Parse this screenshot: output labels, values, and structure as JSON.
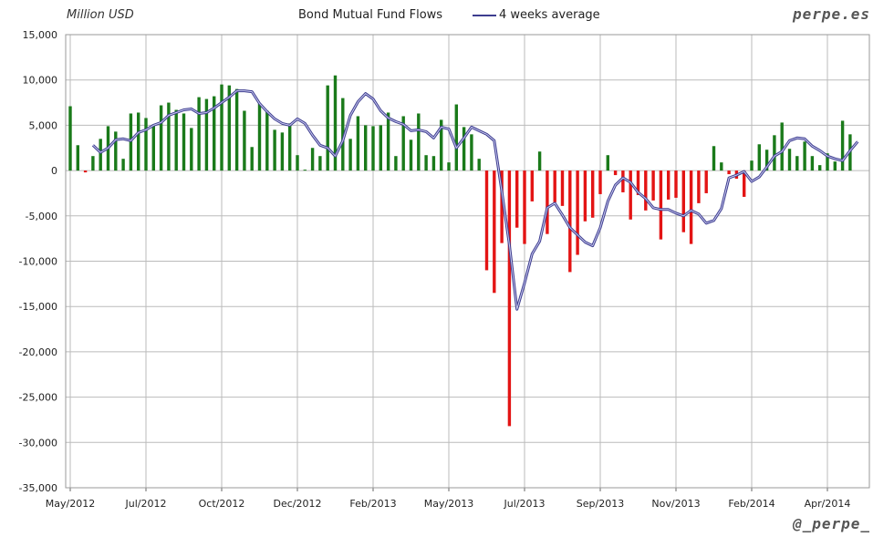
{
  "header": {
    "unit_label": "Million USD",
    "title": "Bond Mutual Fund Flows",
    "legend_label": "4 weeks average",
    "brand_top": "perpe.es",
    "brand_bottom": "@_perpe_"
  },
  "colors": {
    "positive": "#1a7a1a",
    "negative": "#e31414",
    "average": "#3d3d8f",
    "grid": "#bbbbbb"
  },
  "chart_data": {
    "type": "bar",
    "title": "Bond Mutual Fund Flows",
    "ylabel": "Million USD",
    "ylim": [
      -35000,
      15000
    ],
    "y_ticks": [
      15000,
      10000,
      5000,
      0,
      -5000,
      -10000,
      -15000,
      -20000,
      -25000,
      -30000,
      -35000
    ],
    "y_tick_labels": [
      "15,000",
      "10,000",
      "5,000",
      "0",
      "-5,000",
      "-10,000",
      "-15,000",
      "-20,000",
      "-25,000",
      "-30,000",
      "-35,000"
    ],
    "x_tick_labels": [
      "May/2012",
      "Jul/2012",
      "Oct/2012",
      "Dec/2012",
      "Feb/2013",
      "May/2013",
      "Jul/2013",
      "Sep/2013",
      "Nov/2013",
      "Feb/2014",
      "Apr/2014"
    ],
    "x_tick_weeks": [
      0,
      10,
      20,
      30,
      40,
      50,
      60,
      70,
      80,
      90,
      100
    ],
    "grid": true,
    "bar_series": {
      "name": "Bond Mutual Fund Flows",
      "values": [
        7100,
        2800,
        -200,
        1600,
        3500,
        4900,
        4300,
        1300,
        6300,
        6400,
        5800,
        5100,
        7200,
        7500,
        6700,
        6300,
        4700,
        8100,
        7900,
        8200,
        9500,
        9400,
        9000,
        6600,
        2600,
        7400,
        6600,
        4500,
        4200,
        5200,
        1700,
        100,
        2500,
        1600,
        9400,
        10500,
        8000,
        3500,
        6000,
        5000,
        4900,
        5000,
        6400,
        1600,
        6000,
        3400,
        6300,
        1700,
        1600,
        5600,
        900,
        7300,
        4800,
        4000,
        1300,
        -11000,
        -13500,
        -8000,
        -28200,
        -6300,
        -8100,
        -3400,
        2100,
        -7000,
        -3500,
        -3900,
        -11200,
        -9300,
        -5600,
        -5200,
        -2600,
        1700,
        -500,
        -2400,
        -5400,
        -2700,
        -4400,
        -3300,
        -7600,
        -3200,
        -3000,
        -6800,
        -8100,
        -3600,
        -2500,
        2700,
        900,
        -400,
        -900,
        -2900,
        1100,
        2900,
        2300,
        3900,
        5300,
        2400,
        1600,
        3200,
        1600,
        600,
        1900,
        1000,
        5500,
        4000
      ]
    },
    "line_series": {
      "name": "4 weeks average",
      "start_week": 3,
      "values": [
        2800,
        2000,
        2500,
        3400,
        3500,
        3300,
        4200,
        4500,
        5000,
        5300,
        6100,
        6400,
        6700,
        6800,
        6300,
        6400,
        6900,
        7500,
        8100,
        8800,
        8800,
        8700,
        7400,
        6500,
        5700,
        5200,
        5000,
        5700,
        5200,
        3900,
        2800,
        2500,
        1600,
        3300,
        6100,
        7600,
        8500,
        7900,
        6600,
        5800,
        5400,
        5100,
        4400,
        4500,
        4300,
        3600,
        4800,
        4600,
        2500,
        3600,
        4800,
        4400,
        4000,
        3300,
        -2300,
        -8200,
        -15300,
        -12400,
        -9200,
        -7800,
        -4100,
        -3600,
        -4900,
        -6300,
        -7100,
        -7900,
        -8300,
        -6300,
        -3400,
        -1600,
        -800,
        -1300,
        -2400,
        -3100,
        -4100,
        -4300,
        -4300,
        -4700,
        -5000,
        -4400,
        -4800,
        -5800,
        -5500,
        -4200,
        -800,
        -500,
        -100,
        -1200,
        -700,
        400,
        1600,
        2100,
        3300,
        3600,
        3500,
        2700,
        2200,
        1600,
        1300,
        1100,
        2200,
        3200
      ]
    }
  }
}
